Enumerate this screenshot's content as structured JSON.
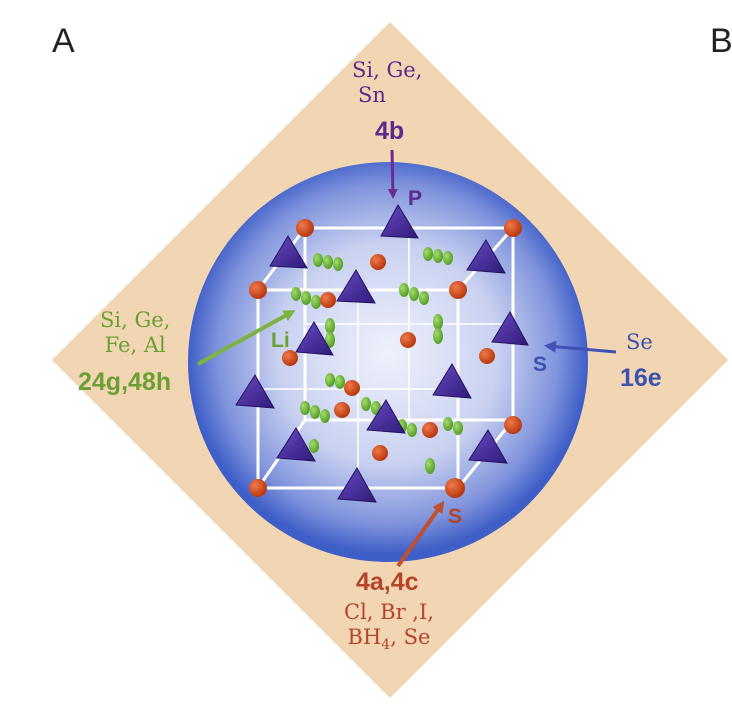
{
  "panels": {
    "a": "A",
    "b": "B"
  },
  "labels": {
    "top": {
      "substituents": [
        "Si, Ge,",
        "Sn"
      ],
      "site": "4b",
      "atom": "P"
    },
    "left": {
      "substituents": [
        "Si, Ge,",
        "Fe, Al"
      ],
      "site": "24g,48h",
      "atom": "Li"
    },
    "right": {
      "substituents": [
        "Se"
      ],
      "site": "16e",
      "atom": "S"
    },
    "bottom": {
      "substituents": [
        "Cl, Br ,I,"
      ],
      "bh": "BH",
      "sub": "4",
      "se": ", Se",
      "site": "4a,4c",
      "atom": "S"
    }
  },
  "colors": {
    "diamond": "#f2d6b3",
    "sphere_center": "#eef1fb",
    "sphere_edge": "#3f5fc8",
    "tetrahedron": "#4a2c9a",
    "red_atom": "#d14a1e",
    "li_atom": "#6cb33a",
    "frame": "#ffffff",
    "arrow_purple": "#6a2c91",
    "arrow_green": "#7cb342",
    "arrow_blue": "#3f51b5",
    "arrow_red": "#c0502f"
  }
}
